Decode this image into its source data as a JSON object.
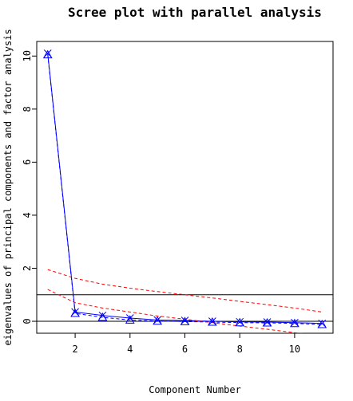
{
  "chart_data": {
    "type": "line",
    "title": "Scree plot with parallel analysis",
    "xlabel": "Component Number",
    "ylabel": "eigenvalues of principal components and factor analysis",
    "xlim": [
      0.6,
      11.4
    ],
    "ylim": [
      -0.45,
      10.55
    ],
    "x_ticks": [
      2,
      4,
      6,
      8,
      10
    ],
    "y_ticks": [
      0,
      2,
      4,
      6,
      8,
      10
    ],
    "grid": false,
    "reference_lines": [
      {
        "type": "h",
        "y": 1,
        "color": "#000000"
      },
      {
        "type": "h",
        "y": 0,
        "color": "#000000"
      }
    ],
    "series": [
      {
        "kind": "pc_actual",
        "x": [
          1,
          2,
          3,
          4,
          5,
          6,
          7,
          8,
          9,
          10,
          11
        ],
        "values": [
          10.1,
          0.35,
          0.22,
          0.12,
          0.05,
          0.03,
          0.0,
          -0.02,
          -0.03,
          -0.05,
          -0.08
        ],
        "color": "#0000ff",
        "dash": "solid",
        "marker": "x"
      },
      {
        "kind": "fa_actual",
        "x": [
          1,
          2,
          3,
          4,
          5,
          6,
          7,
          8,
          9,
          10,
          11
        ],
        "values": [
          10.05,
          0.3,
          0.15,
          0.05,
          0.01,
          -0.01,
          -0.03,
          -0.05,
          -0.06,
          -0.08,
          -0.12
        ],
        "color": "#0000ff",
        "dash": "dashed",
        "marker": "triangle"
      },
      {
        "kind": "pc_simulated",
        "x": [
          1,
          2,
          3,
          4,
          5,
          6,
          7,
          8,
          9,
          10,
          11
        ],
        "values": [
          1.95,
          1.62,
          1.4,
          1.25,
          1.12,
          1.0,
          0.88,
          0.75,
          0.63,
          0.5,
          0.35
        ],
        "color": "#ff0000",
        "dash": "dashed",
        "marker": "none"
      },
      {
        "kind": "fa_simulated",
        "x": [
          1,
          2,
          3,
          4,
          5,
          6,
          7,
          8,
          9,
          10,
          11
        ],
        "values": [
          1.2,
          0.7,
          0.5,
          0.35,
          0.2,
          0.08,
          -0.05,
          -0.18,
          -0.3,
          -0.43,
          -0.55
        ],
        "color": "#ff0000",
        "dash": "dashed",
        "marker": "none"
      }
    ]
  }
}
